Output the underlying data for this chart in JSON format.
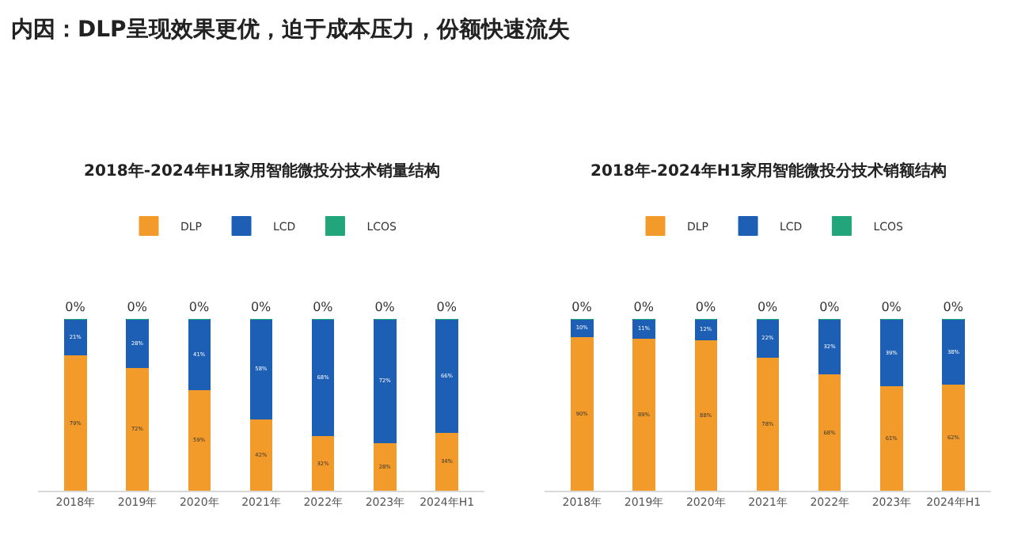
{
  "chart_data": [
    {
      "type": "bar",
      "stacked": true,
      "title": "2018年-2024年H1家用智能微投分技术销量结构",
      "legend": "top",
      "annotations": [
        "内因：DLP呈现效果更优，迫于成本压力，份额快速流失"
      ],
      "categories": [
        "2018年",
        "2019年",
        "2020年",
        "2021年",
        "2022年",
        "2023年",
        "2024年H1"
      ],
      "series": [
        {
          "name": "DLP",
          "color": "#f29b2a",
          "values": [
            79,
            72,
            59,
            42,
            32,
            28,
            34
          ],
          "value_labels": [
            "79%",
            "72%",
            "59%",
            "42%",
            "32%",
            "28%",
            "34%"
          ]
        },
        {
          "name": "LCD",
          "color": "#1d5fb5",
          "values": [
            21,
            28,
            41,
            58,
            68,
            72,
            66
          ],
          "value_labels": [
            "21%",
            "28%",
            "41%",
            "58%",
            "68%",
            "72%",
            "66%"
          ]
        },
        {
          "name": "LCOS",
          "color": "#22a57a",
          "values": [
            0,
            0,
            0,
            0,
            0,
            0,
            0
          ],
          "value_labels": [
            "0%",
            "0%",
            "0%",
            "0%",
            "0%",
            "0%",
            "0%"
          ]
        }
      ]
    },
    {
      "type": "bar",
      "stacked": true,
      "title": "2018年-2024年H1家用智能微投分技术销额结构",
      "legend": "top",
      "categories": [
        "2018年",
        "2019年",
        "2020年",
        "2021年",
        "2022年",
        "2023年",
        "2024年H1"
      ],
      "series": [
        {
          "name": "DLP",
          "color": "#f29b2a",
          "values": [
            90,
            89,
            88,
            78,
            68,
            61,
            62
          ],
          "value_labels": [
            "90%",
            "89%",
            "88%",
            "78%",
            "68%",
            "61%",
            "62%"
          ]
        },
        {
          "name": "LCD",
          "color": "#1d5fb5",
          "values": [
            10,
            11,
            12,
            22,
            32,
            39,
            38
          ],
          "value_labels": [
            "10%",
            "11%",
            "12%",
            "22%",
            "32%",
            "39%",
            "38%"
          ]
        },
        {
          "name": "LCOS",
          "color": "#22a57a",
          "values": [
            0,
            0,
            0,
            0,
            0,
            0,
            0
          ],
          "value_labels": [
            "0%",
            "0%",
            "0%",
            "0%",
            "0%",
            "0%",
            "0%"
          ]
        }
      ]
    }
  ]
}
